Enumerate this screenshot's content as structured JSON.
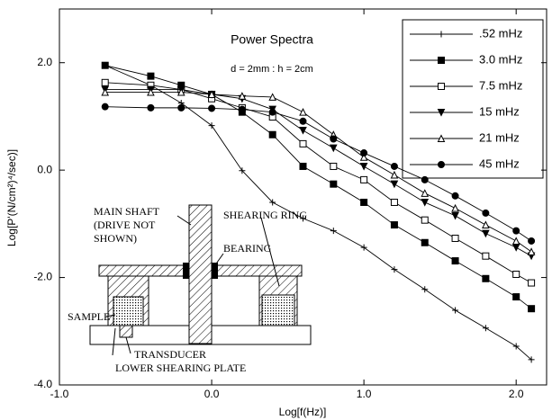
{
  "chart_data": {
    "type": "line",
    "title": "Power Spectra",
    "subtitle": "d = 2mm : h = 2cm",
    "x_label": "Log[f(Hz)]",
    "y_label": "Log[P'(N/cm²)⁴/sec)]",
    "xlim": [
      -1,
      2.2
    ],
    "ylim": [
      -4,
      3
    ],
    "xticks": [
      {
        "value": -1,
        "label": "-1.0"
      },
      {
        "value": 0,
        "label": "0.0"
      },
      {
        "value": 1,
        "label": "1.0"
      },
      {
        "value": 2,
        "label": "2.0"
      }
    ],
    "yticks": [
      {
        "value": -4,
        "label": "-4.0"
      },
      {
        "value": -2,
        "label": "-2.0"
      },
      {
        "value": 0,
        "label": "0.0"
      },
      {
        "value": 2,
        "label": "2.0"
      }
    ],
    "grid": false,
    "legend": "upper right",
    "x": [
      -0.7,
      -0.4,
      -0.2,
      0,
      0.2,
      0.4,
      0.6,
      0.8,
      1.0,
      1.2,
      1.4,
      1.6,
      1.8,
      2.0,
      2.1
    ],
    "series": [
      {
        "name": ".52 mHz",
        "color": "#000000",
        "marker": "plus",
        "values": [
          1.95,
          1.58,
          1.25,
          0.83,
          -0.01,
          -0.6,
          -0.9,
          -1.13,
          -1.44,
          -1.85,
          -2.22,
          -2.61,
          -2.94,
          -3.28,
          -3.53
        ]
      },
      {
        "name": "3.0 mHz",
        "color": "#000000",
        "marker": "square-filled",
        "values": [
          1.95,
          1.75,
          1.58,
          1.41,
          1.08,
          0.66,
          0.07,
          -0.26,
          -0.6,
          -1.02,
          -1.35,
          -1.69,
          -2.02,
          -2.36,
          -2.58
        ]
      },
      {
        "name": "7.5 mHz",
        "color": "#000000",
        "marker": "square-open",
        "values": [
          1.63,
          1.58,
          1.5,
          1.33,
          1.16,
          0.99,
          0.49,
          0.07,
          -0.18,
          -0.6,
          -0.93,
          -1.27,
          -1.6,
          -1.94,
          -2.1
        ]
      },
      {
        "name": "15 mHz",
        "color": "#000000",
        "marker": "triangle-down-filled",
        "values": [
          1.5,
          1.5,
          1.5,
          1.41,
          1.33,
          1.13,
          0.74,
          0.41,
          0.07,
          -0.26,
          -0.6,
          -0.85,
          -1.18,
          -1.44,
          -1.6
        ]
      },
      {
        "name": "21 mHz",
        "color": "#000000",
        "marker": "triangle-open",
        "values": [
          1.45,
          1.45,
          1.45,
          1.41,
          1.38,
          1.36,
          1.08,
          0.66,
          0.24,
          -0.09,
          -0.43,
          -0.71,
          -1.02,
          -1.32,
          -1.52
        ]
      },
      {
        "name": "45 mHz",
        "color": "#000000",
        "marker": "circle-filled",
        "values": [
          1.18,
          1.16,
          1.16,
          1.15,
          1.13,
          1.08,
          0.91,
          0.58,
          0.32,
          0.07,
          -0.18,
          -0.48,
          -0.8,
          -1.13,
          -1.32
        ]
      }
    ],
    "annotations": [
      "MAIN SHAFT",
      "(DRIVE NOT",
      "SHOWN)",
      "SHEARING RING",
      "BEARING",
      "SAMPLE",
      "TRANSDUCER",
      "LOWER SHEARING PLATE"
    ]
  }
}
